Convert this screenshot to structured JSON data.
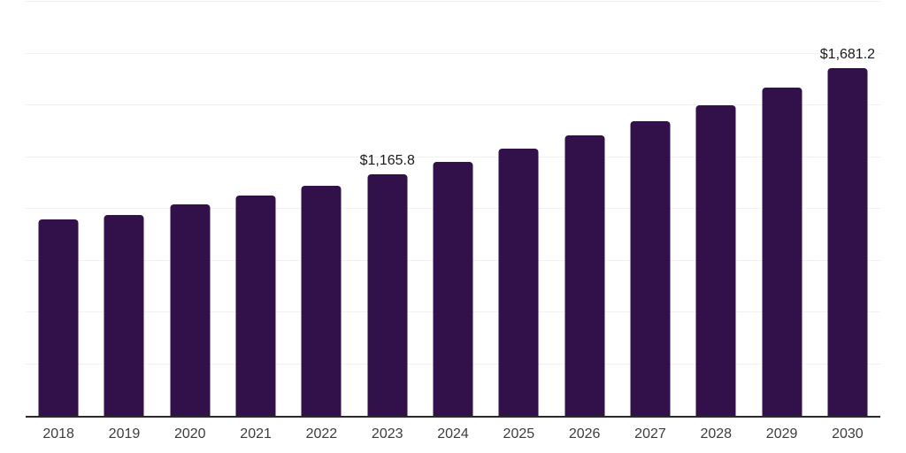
{
  "chart_data": {
    "type": "bar",
    "title": "",
    "xlabel": "",
    "ylabel": "",
    "categories": [
      "2018",
      "2019",
      "2020",
      "2021",
      "2022",
      "2023",
      "2024",
      "2025",
      "2026",
      "2027",
      "2028",
      "2029",
      "2030"
    ],
    "values": [
      948,
      972,
      1022,
      1064,
      1112,
      1165.8,
      1228,
      1290,
      1353,
      1425,
      1500,
      1585,
      1681.2
    ],
    "labeled_points": [
      {
        "category": "2023",
        "label": "$1,165.8"
      },
      {
        "category": "2030",
        "label": "$1,681.2"
      }
    ],
    "ylim": [
      0,
      2000
    ],
    "gridline_step": 250,
    "grid": true,
    "legend": false,
    "y_axis_labels_visible": false
  },
  "colors": {
    "background": "#ffffff",
    "bar": "#32104a",
    "axis": "#2a2a2a",
    "gridline": "#f2f2f2",
    "value_label": "#1a1a1a",
    "tick_label": "#3d3d3d"
  }
}
